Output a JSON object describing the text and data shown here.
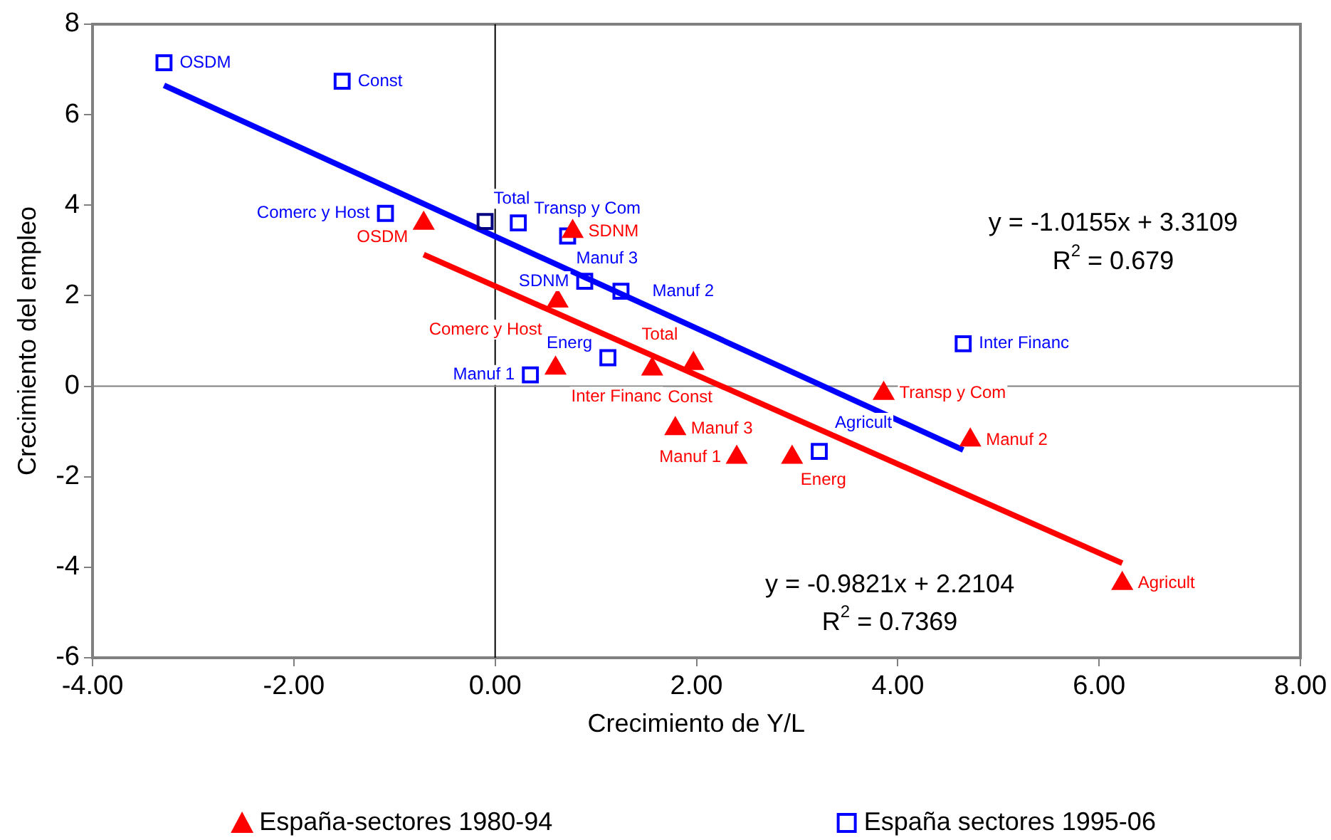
{
  "chart_data": {
    "type": "scatter",
    "xlabel": "Crecimiento de Y/L",
    "ylabel": "Crecimiento del empleo",
    "xlim": [
      -4,
      8
    ],
    "ylim": [
      -6,
      8
    ],
    "xticks": [
      {
        "value": -4,
        "label": "-4.00"
      },
      {
        "value": -2,
        "label": "-2.00"
      },
      {
        "value": 0,
        "label": "0.00"
      },
      {
        "value": 2,
        "label": "2.00"
      },
      {
        "value": 4,
        "label": "4.00"
      },
      {
        "value": 6,
        "label": "6.00"
      },
      {
        "value": 8,
        "label": "8.00"
      }
    ],
    "yticks": [
      -6,
      -4,
      -2,
      0,
      2,
      4,
      6,
      8
    ],
    "grid": false,
    "legend": "bottom",
    "ref_lines": [
      {
        "axis": "x",
        "value": 0,
        "color": "#000000"
      },
      {
        "axis": "y",
        "value": 0,
        "color": "#808080"
      }
    ],
    "series": [
      {
        "name": "España-sectores 1980-94",
        "color": "#ff0000",
        "marker": "triangle",
        "x": [
          -0.71,
          0.77,
          0.62,
          0.6,
          1.56,
          1.97,
          1.79,
          2.95,
          2.4,
          3.86,
          4.72,
          6.23
        ],
        "values": [
          3.6,
          3.42,
          1.88,
          0.4,
          0.38,
          0.5,
          -0.94,
          -1.57,
          -1.57,
          -0.16,
          -1.19,
          -4.36
        ],
        "value_labels": [
          "OSDM",
          "SDNM",
          "Comerc y Host",
          "Inter Financ",
          "Const",
          "Total",
          "Manuf 3",
          "Energ",
          "Manuf 1",
          "Transp y Com",
          "Manuf 2",
          "Agricult"
        ]
      },
      {
        "name": "España sectores 1995-06",
        "color": "#0000ff",
        "marker": "square",
        "colors": [
          "#0000ff",
          "#0000ff",
          "#0000ff",
          "#000080",
          "#0000ff",
          "#0000ff",
          "#0000ff",
          "#0000ff",
          "#0000ff",
          "#0000ff",
          "#0000ff",
          "#0000ff"
        ],
        "x": [
          -3.29,
          -1.52,
          -1.09,
          -0.1,
          0.23,
          0.72,
          0.89,
          1.25,
          0.35,
          1.12,
          4.65,
          3.22
        ],
        "values": [
          7.15,
          6.74,
          3.82,
          3.64,
          3.61,
          3.32,
          2.32,
          2.1,
          0.25,
          0.63,
          0.94,
          -1.44
        ],
        "value_labels": [
          "OSDM",
          "Const",
          "Comerc y Host",
          "Total",
          "Transp y Com",
          "Manuf 3",
          "SDNM",
          "Manuf 2",
          "Manuf 1",
          "Energ",
          "Inter Financ",
          "Agricult"
        ]
      },
      {
        "type": "line",
        "color": "#0000ff",
        "marker": "none",
        "x": [
          -3.29,
          4.65
        ],
        "values": [
          6.65,
          -1.41
        ]
      },
      {
        "type": "line",
        "color": "#ff0000",
        "marker": "none",
        "x": [
          -0.71,
          6.23
        ],
        "values": [
          2.91,
          -3.91
        ]
      }
    ],
    "annotations": [
      "y = -1.0155x + 3.3109",
      "R$^{2}$ = 0.679",
      "y = -0.9821x + 2.2104",
      "R$^{2}$ = 0.7369"
    ]
  }
}
